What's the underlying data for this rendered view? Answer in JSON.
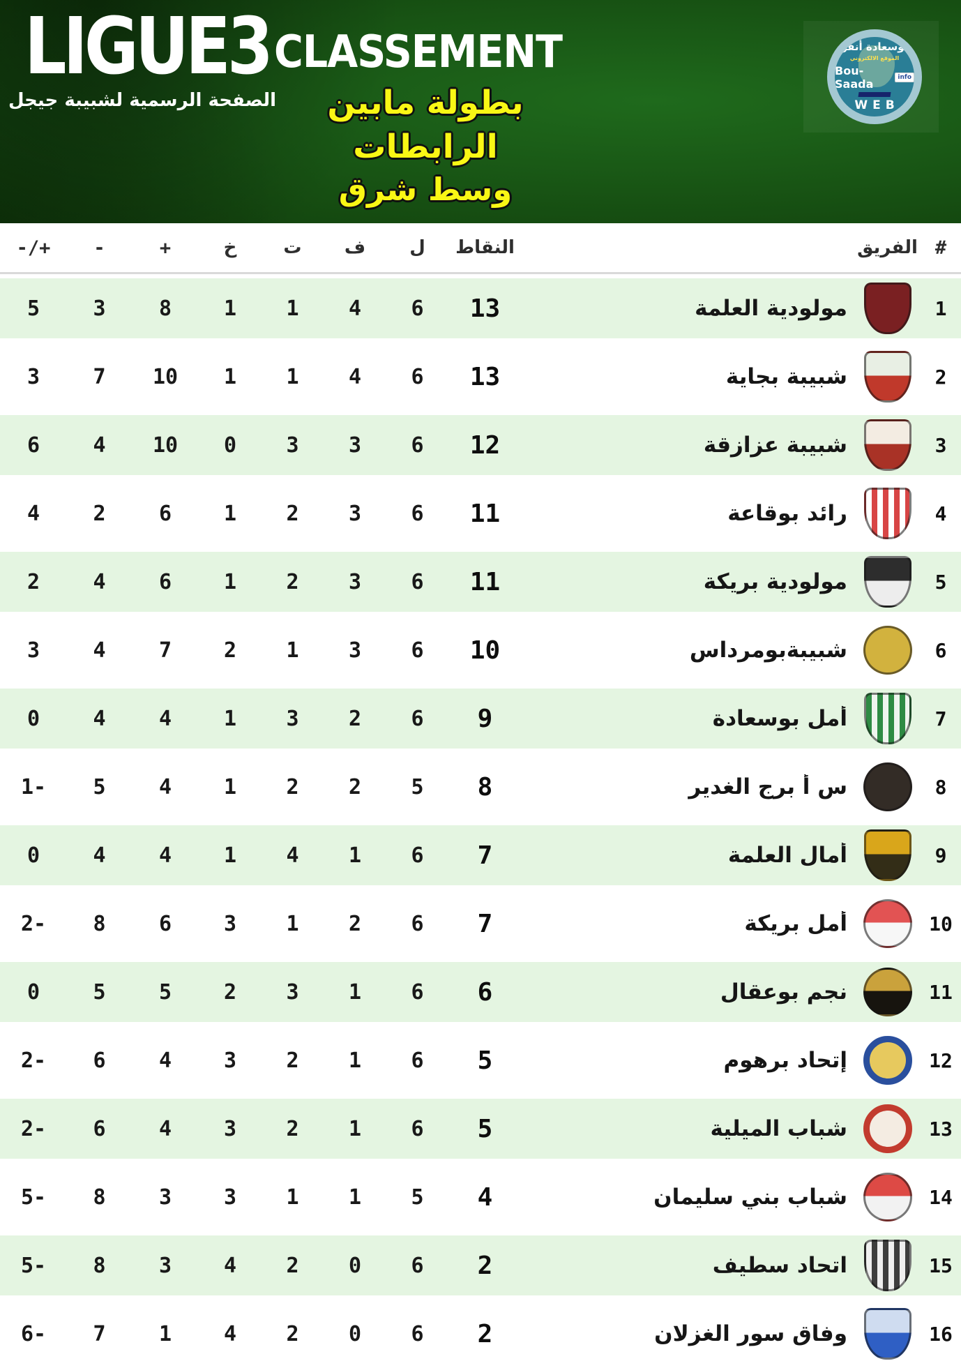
{
  "banner": {
    "league_logo": "LIGUE3",
    "league_logo_subtitle": "الصفحة الرسمية لشبيبة جيجل",
    "heading": "CLASSEMENT",
    "title_line1": "بطولة مابين الرابطات",
    "title_line2": "وسط شرق",
    "badge": {
      "arabic_name": "بوسعادة أنفو",
      "arabic_tagline": "الموقع الالكتروني",
      "latin_name": "Bou-Saada",
      "info_tag": "info",
      "web_label": "WEB"
    },
    "colors": {
      "background_green": "#175213",
      "title_yellow": "#f9f715",
      "row_tint_green": "#e4f5e1"
    }
  },
  "chart_data": {
    "type": "table",
    "title": "CLASSEMENT — بطولة مابين الرابطات وسط شرق",
    "headers": {
      "rank": "#",
      "team": "الفريق",
      "pts": "النقاط",
      "played": "ل",
      "wins": "ف",
      "draws": "ت",
      "losses": "خ",
      "gf": "+",
      "ga": "-",
      "gd": "-/+"
    },
    "rows": [
      {
        "rank": "1",
        "team": "مولودية العلمة",
        "pts": "13",
        "played": "6",
        "wins": "4",
        "draws": "1",
        "losses": "1",
        "gf": "8",
        "ga": "3",
        "gd": "5",
        "crest": {
          "shape": "shield",
          "fill": "solid",
          "c1": "#7a2022",
          "c2": "#3a1212"
        }
      },
      {
        "rank": "2",
        "team": "شبيبة بجاية",
        "pts": "13",
        "played": "6",
        "wins": "4",
        "draws": "1",
        "losses": "1",
        "gf": "10",
        "ga": "7",
        "gd": "3",
        "crest": {
          "shape": "shield",
          "fill": "half",
          "c1": "#e8efe4",
          "c2": "#c0392b"
        }
      },
      {
        "rank": "3",
        "team": "شبيبة عزازقة",
        "pts": "12",
        "played": "6",
        "wins": "3",
        "draws": "3",
        "losses": "0",
        "gf": "10",
        "ga": "4",
        "gd": "6",
        "crest": {
          "shape": "shield",
          "fill": "half",
          "c1": "#f3ece2",
          "c2": "#a93226"
        }
      },
      {
        "rank": "4",
        "team": "رائد بوقاعة",
        "pts": "11",
        "played": "6",
        "wins": "3",
        "draws": "2",
        "losses": "1",
        "gf": "6",
        "ga": "2",
        "gd": "4",
        "crest": {
          "shape": "shield",
          "fill": "striped",
          "c1": "#ffffff",
          "c2": "#d84545"
        }
      },
      {
        "rank": "5",
        "team": "مولودية بريكة",
        "pts": "11",
        "played": "6",
        "wins": "3",
        "draws": "2",
        "losses": "1",
        "gf": "6",
        "ga": "4",
        "gd": "2",
        "crest": {
          "shape": "shield",
          "fill": "half",
          "c1": "#2d2d2d",
          "c2": "#ededed"
        }
      },
      {
        "rank": "6",
        "team": "شبيبةبومرداس",
        "pts": "10",
        "played": "6",
        "wins": "3",
        "draws": "1",
        "losses": "2",
        "gf": "7",
        "ga": "4",
        "gd": "3",
        "crest": {
          "shape": "circle",
          "fill": "solid",
          "c1": "#d2b23e",
          "c2": "#a8871f"
        }
      },
      {
        "rank": "7",
        "team": "أمل بوسعادة",
        "pts": "9",
        "played": "6",
        "wins": "2",
        "draws": "3",
        "losses": "1",
        "gf": "4",
        "ga": "4",
        "gd": "0",
        "crest": {
          "shape": "shield",
          "fill": "striped",
          "c1": "#2e8b44",
          "c2": "#eef5ee"
        }
      },
      {
        "rank": "8",
        "team": "س أ برج الغدير",
        "pts": "8",
        "played": "5",
        "wins": "2",
        "draws": "2",
        "losses": "1",
        "gf": "4",
        "ga": "5",
        "gd": "1-",
        "crest": {
          "shape": "circle",
          "fill": "solid",
          "c1": "#332c26",
          "c2": "#141110"
        }
      },
      {
        "rank": "9",
        "team": "أمال العلمة",
        "pts": "7",
        "played": "6",
        "wins": "1",
        "draws": "4",
        "losses": "1",
        "gf": "4",
        "ga": "4",
        "gd": "0",
        "crest": {
          "shape": "shield",
          "fill": "half",
          "c1": "#d9a61b",
          "c2": "#332d17"
        }
      },
      {
        "rank": "10",
        "team": "أمل بريكة",
        "pts": "7",
        "played": "6",
        "wins": "2",
        "draws": "1",
        "losses": "3",
        "gf": "6",
        "ga": "8",
        "gd": "2-",
        "crest": {
          "shape": "circle",
          "fill": "half",
          "c1": "#e25353",
          "c2": "#f7f7f7"
        }
      },
      {
        "rank": "11",
        "team": "نجم بوعقال",
        "pts": "6",
        "played": "6",
        "wins": "1",
        "draws": "3",
        "losses": "2",
        "gf": "5",
        "ga": "5",
        "gd": "0",
        "crest": {
          "shape": "circle",
          "fill": "half",
          "c1": "#caa23c",
          "c2": "#17140e"
        }
      },
      {
        "rank": "12",
        "team": "إتحاد برهوم",
        "pts": "5",
        "played": "6",
        "wins": "1",
        "draws": "2",
        "losses": "3",
        "gf": "4",
        "ga": "6",
        "gd": "2-",
        "crest": {
          "shape": "circle",
          "fill": "ring",
          "c1": "#2a4f9d",
          "c2": "#e7c95e"
        }
      },
      {
        "rank": "13",
        "team": "شباب الميلية",
        "pts": "5",
        "played": "6",
        "wins": "1",
        "draws": "2",
        "losses": "3",
        "gf": "4",
        "ga": "6",
        "gd": "2-",
        "crest": {
          "shape": "circle",
          "fill": "ring",
          "c1": "#c23b2e",
          "c2": "#f4ece2"
        }
      },
      {
        "rank": "14",
        "team": "شباب بني سليمان",
        "pts": "4",
        "played": "5",
        "wins": "1",
        "draws": "1",
        "losses": "3",
        "gf": "3",
        "ga": "8",
        "gd": "5-",
        "crest": {
          "shape": "circle",
          "fill": "half",
          "c1": "#dd4a45",
          "c2": "#f2f2f2"
        }
      },
      {
        "rank": "15",
        "team": "اتحاد سطيف",
        "pts": "2",
        "played": "6",
        "wins": "0",
        "draws": "2",
        "losses": "4",
        "gf": "3",
        "ga": "8",
        "gd": "5-",
        "crest": {
          "shape": "shield",
          "fill": "striped",
          "c1": "#efefef",
          "c2": "#3d3d3d"
        }
      },
      {
        "rank": "16",
        "team": "وفاق سور الغزلان",
        "pts": "2",
        "played": "6",
        "wins": "0",
        "draws": "2",
        "losses": "4",
        "gf": "1",
        "ga": "7",
        "gd": "6-",
        "crest": {
          "shape": "shield",
          "fill": "half",
          "c1": "#cfdcf0",
          "c2": "#2f5fc4"
        }
      }
    ]
  }
}
